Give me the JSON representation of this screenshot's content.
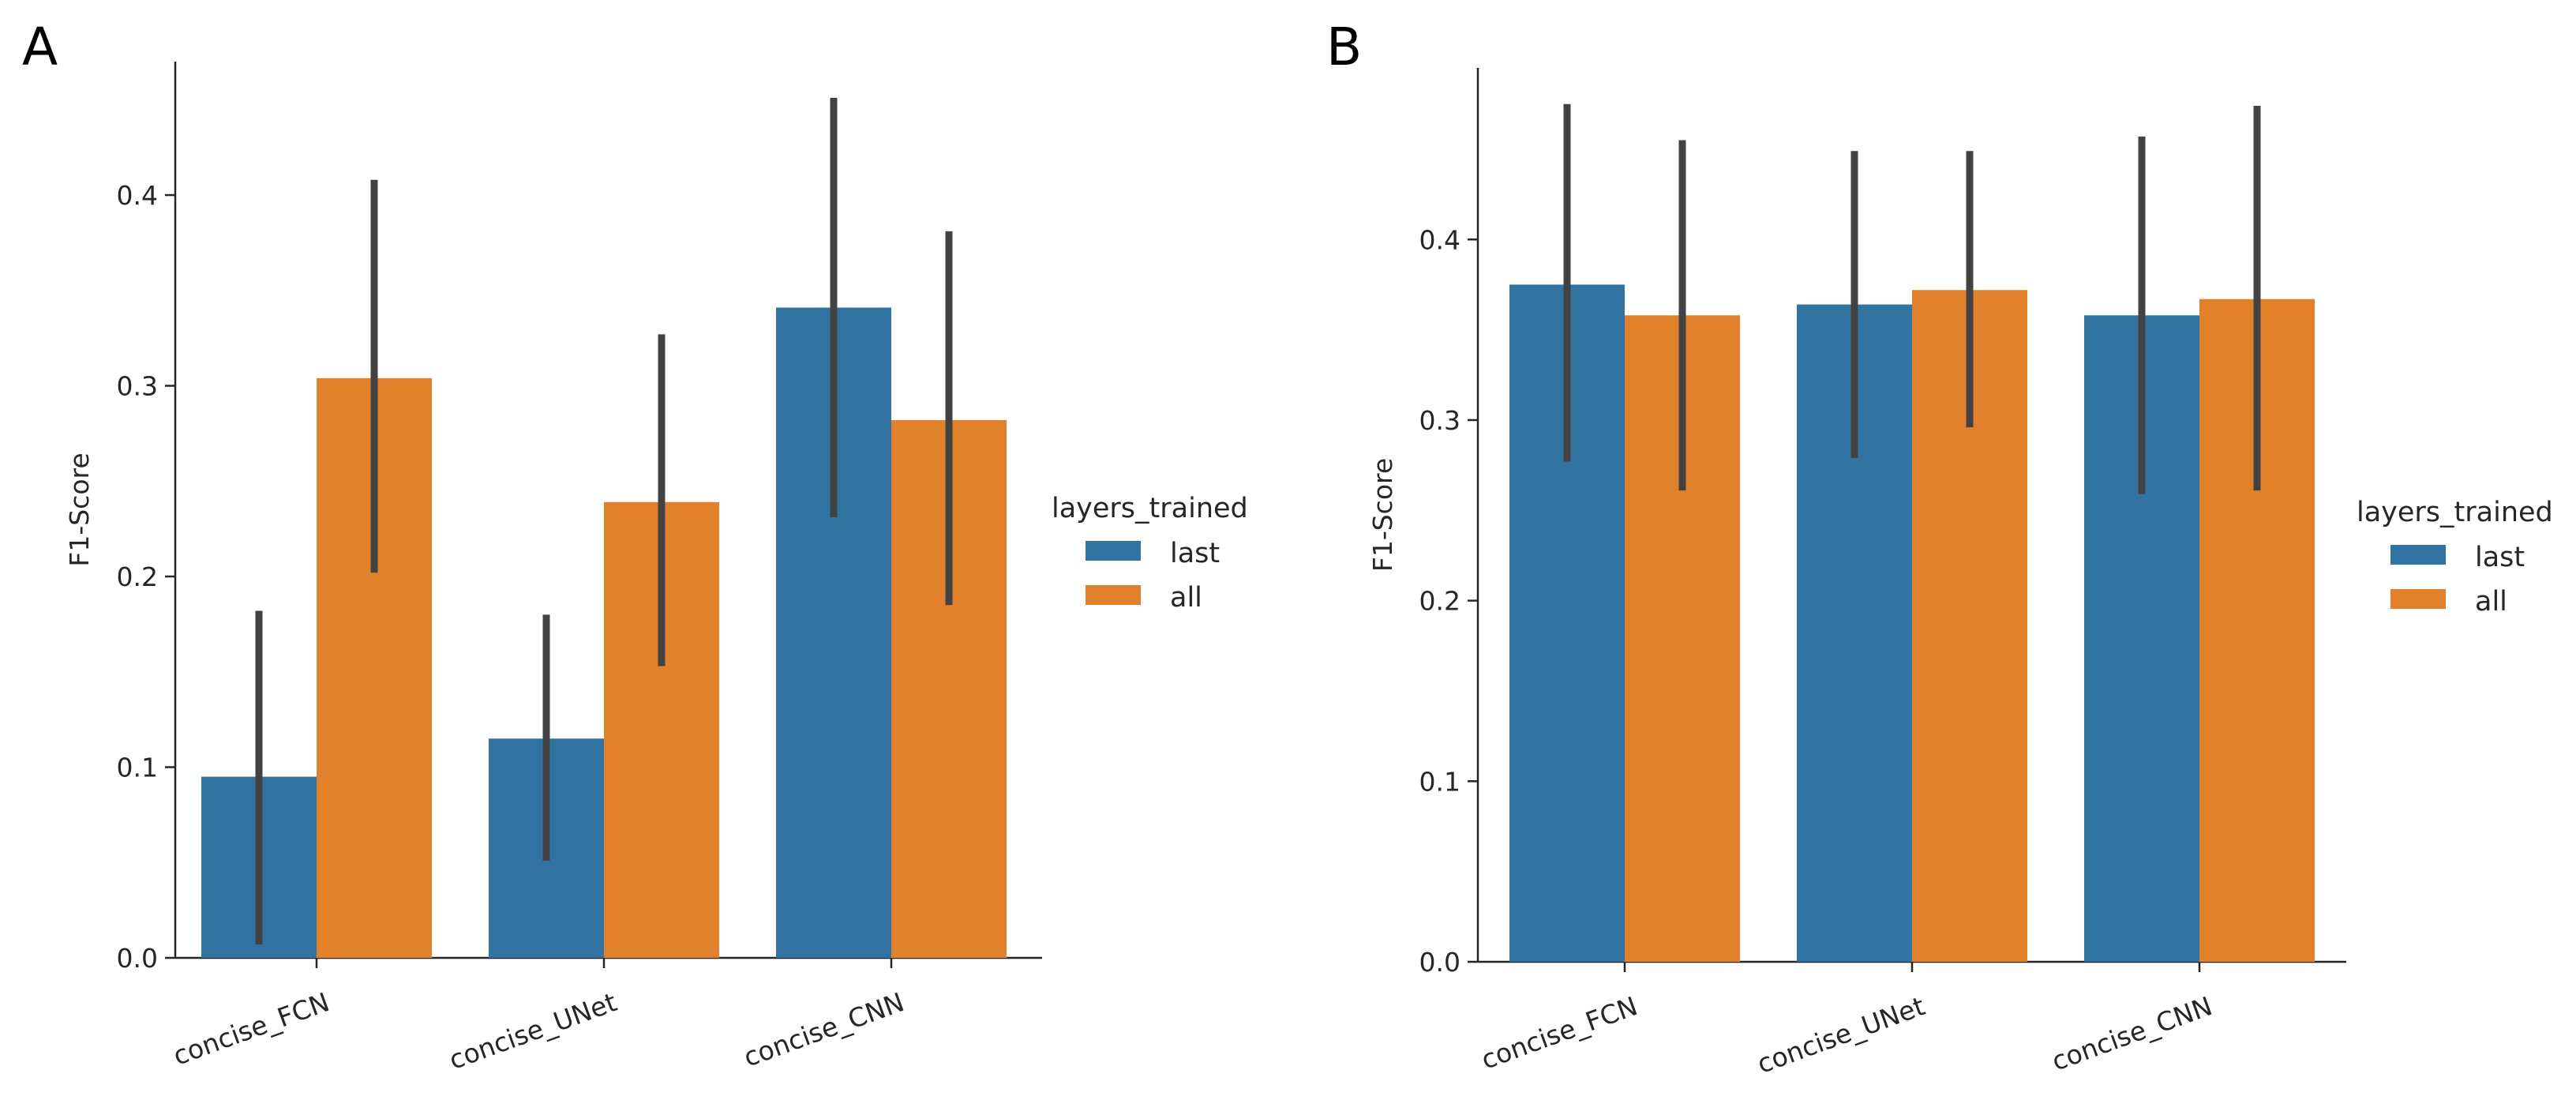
{
  "colors": {
    "last": "#3274a1",
    "all": "#e1812c",
    "errorbar": "#424242"
  },
  "chart_data": [
    {
      "panel": "A",
      "type": "bar",
      "categories": [
        "concise_FCN",
        "concise_UNet",
        "concise_CNN"
      ],
      "ylabel": "F1-Score",
      "xlabel": "",
      "ylim": [
        0,
        0.47
      ],
      "yticks": [
        "0.0",
        "0.1",
        "0.2",
        "0.3",
        "0.4"
      ],
      "legend": {
        "title": "layers_trained",
        "position": "center-right"
      },
      "series": [
        {
          "name": "last",
          "values": [
            0.095,
            0.115,
            0.341
          ],
          "ci_low": [
            0.007,
            0.051,
            0.231
          ],
          "ci_high": [
            0.182,
            0.18,
            0.451
          ]
        },
        {
          "name": "all",
          "values": [
            0.304,
            0.239,
            0.282
          ],
          "ci_low": [
            0.202,
            0.153,
            0.185
          ],
          "ci_high": [
            0.408,
            0.327,
            0.381
          ]
        }
      ]
    },
    {
      "panel": "B",
      "type": "bar",
      "categories": [
        "concise_FCN",
        "concise_UNet",
        "concise_CNN"
      ],
      "ylabel": "F1-Score",
      "xlabel": "",
      "ylim": [
        0,
        0.495
      ],
      "yticks": [
        "0.0",
        "0.1",
        "0.2",
        "0.3",
        "0.4"
      ],
      "legend": {
        "title": "layers_trained",
        "position": "center-right"
      },
      "series": [
        {
          "name": "last",
          "values": [
            0.375,
            0.364,
            0.358
          ],
          "ci_low": [
            0.277,
            0.279,
            0.259
          ],
          "ci_high": [
            0.475,
            0.449,
            0.457
          ]
        },
        {
          "name": "all",
          "values": [
            0.358,
            0.372,
            0.367
          ],
          "ci_low": [
            0.261,
            0.296,
            0.261
          ],
          "ci_high": [
            0.455,
            0.449,
            0.474
          ]
        }
      ]
    }
  ]
}
